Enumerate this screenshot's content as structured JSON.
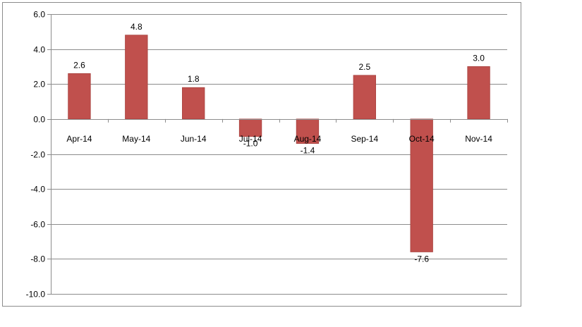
{
  "chart_data": {
    "type": "bar",
    "title": "",
    "xlabel": "",
    "ylabel": "",
    "categories": [
      "Apr-14",
      "May-14",
      "Jun-14",
      "Jul-14",
      "Aug-14",
      "Sep-14",
      "Oct-14",
      "Nov-14"
    ],
    "values": [
      2.6,
      4.8,
      1.8,
      -1.0,
      -1.4,
      2.5,
      -7.6,
      3.0
    ],
    "data_labels": [
      "2.6",
      "4.8",
      "1.8",
      "-1.0",
      "-1.4",
      "2.5",
      "-7.6",
      "3.0"
    ],
    "ylim": [
      -10.0,
      6.0
    ],
    "yticks": [
      6.0,
      4.0,
      2.0,
      0.0,
      -2.0,
      -4.0,
      -6.0,
      -8.0,
      -10.0
    ],
    "ytick_labels": [
      "6.0",
      "4.0",
      "2.0",
      "0.0",
      "-2.0",
      "-4.0",
      "-6.0",
      "-8.0",
      "-10.0"
    ],
    "grid": true,
    "legend": "none",
    "colors": {
      "bar": "#c0504d",
      "bar_edge": "#a8423f",
      "grid": "#8c8c8c"
    }
  }
}
